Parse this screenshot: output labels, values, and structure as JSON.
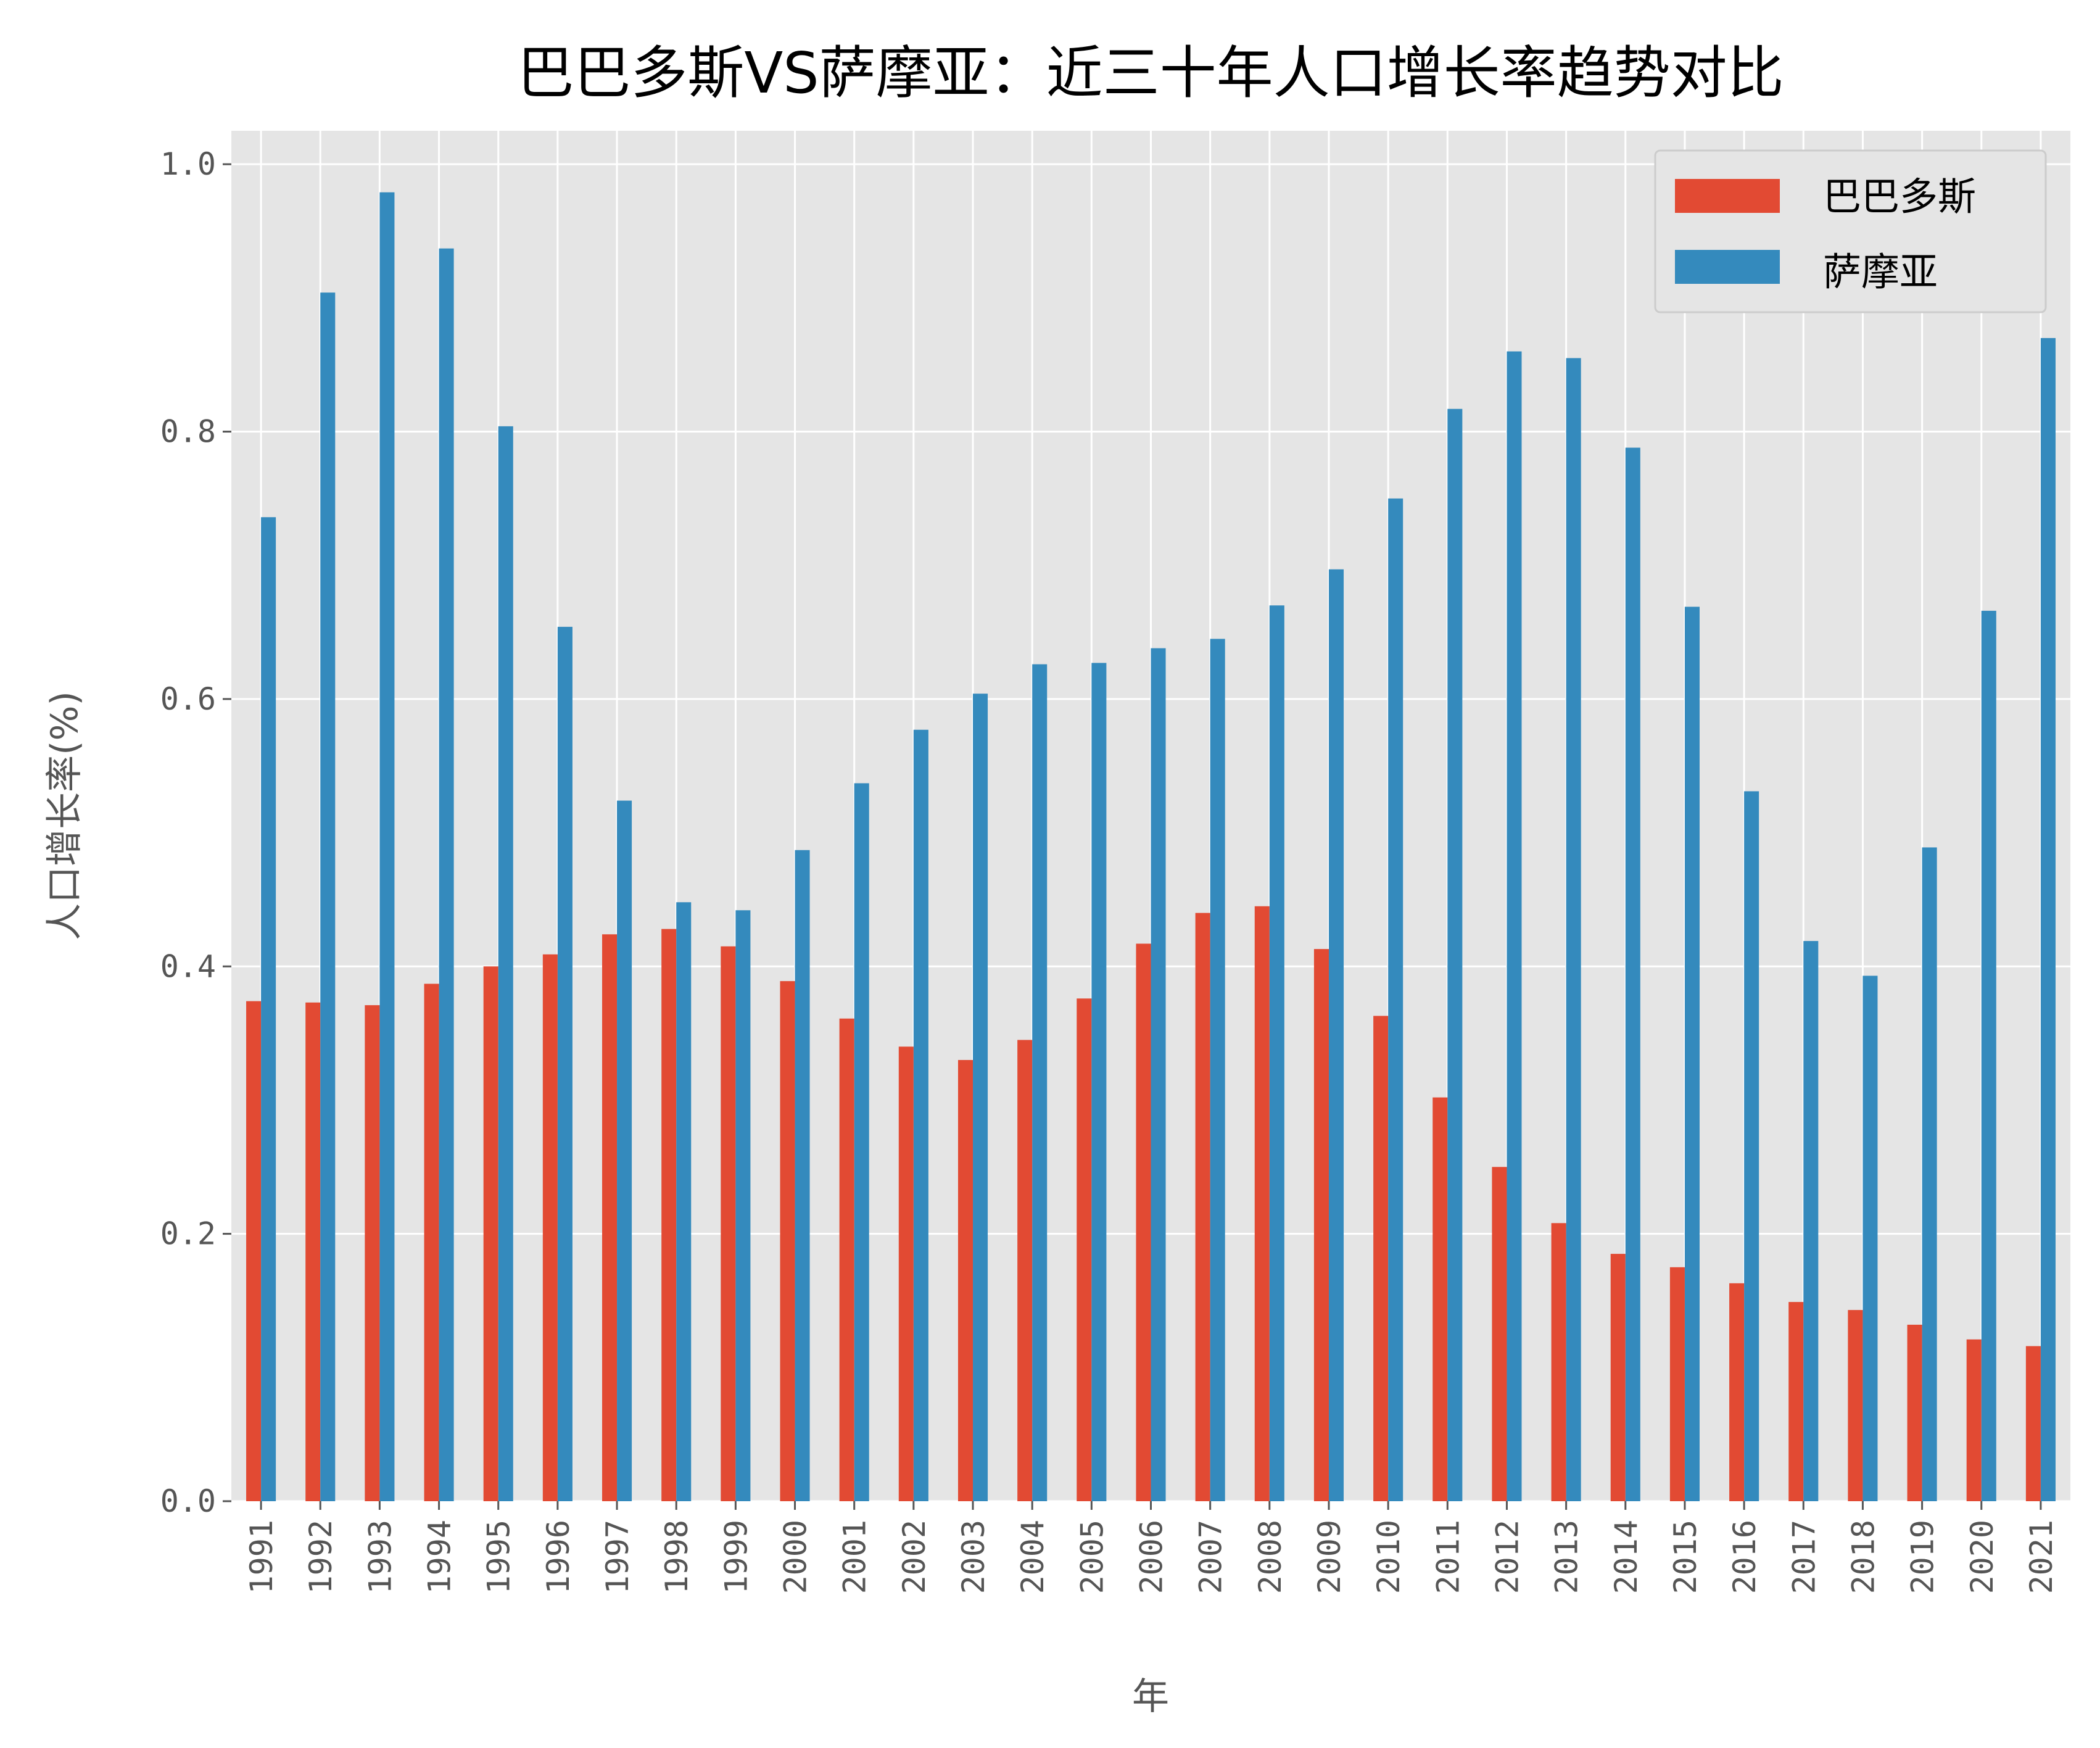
{
  "chart_data": {
    "type": "bar",
    "title": "巴巴多斯VS萨摩亚：近三十年人口增长率趋势对比",
    "xlabel": "年",
    "ylabel": "人口增长率(%)",
    "ylim": [
      0,
      1.025
    ],
    "yticks": [
      "0.0",
      "0.2",
      "0.4",
      "0.6",
      "0.8",
      "1.0"
    ],
    "grid": true,
    "legend_position": "top-right",
    "categories": [
      "1991",
      "1992",
      "1993",
      "1994",
      "1995",
      "1996",
      "1997",
      "1998",
      "1999",
      "2000",
      "2001",
      "2002",
      "2003",
      "2004",
      "2005",
      "2006",
      "2007",
      "2008",
      "2009",
      "2010",
      "2011",
      "2012",
      "2013",
      "2014",
      "2015",
      "2016",
      "2017",
      "2018",
      "2019",
      "2020",
      "2021"
    ],
    "series": [
      {
        "name": "巴巴多斯",
        "color": "#E24A33",
        "values": [
          0.374,
          0.373,
          0.371,
          0.387,
          0.4,
          0.409,
          0.424,
          0.428,
          0.415,
          0.389,
          0.361,
          0.34,
          0.33,
          0.345,
          0.376,
          0.417,
          0.44,
          0.445,
          0.413,
          0.363,
          0.302,
          0.25,
          0.208,
          0.185,
          0.175,
          0.163,
          0.149,
          0.143,
          0.132,
          0.121,
          0.116
        ]
      },
      {
        "name": "萨摩亚",
        "color": "#348ABD",
        "values": [
          0.736,
          0.904,
          0.979,
          0.937,
          0.804,
          0.654,
          0.524,
          0.448,
          0.442,
          0.487,
          0.537,
          0.577,
          0.604,
          0.626,
          0.627,
          0.638,
          0.645,
          0.67,
          0.697,
          0.75,
          0.817,
          0.86,
          0.855,
          0.788,
          0.669,
          0.531,
          0.419,
          0.393,
          0.489,
          0.666,
          0.87
        ]
      }
    ]
  }
}
